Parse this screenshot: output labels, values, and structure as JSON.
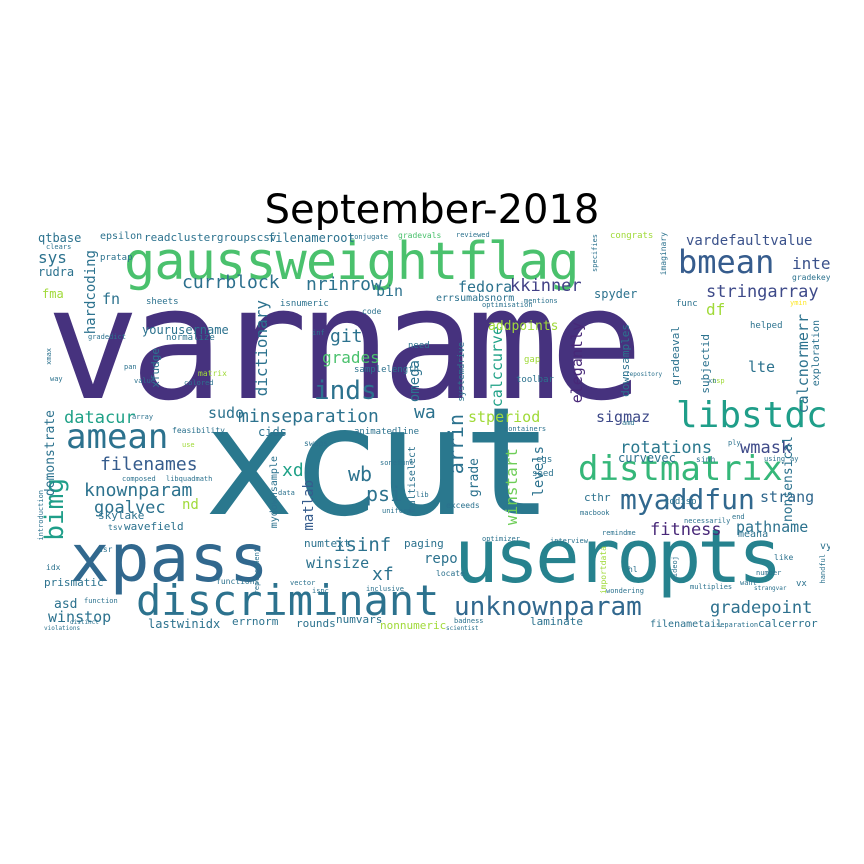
{
  "title": "September-2018",
  "colors": {
    "purple": "#46327e",
    "teal": "#277f8e",
    "blue": "#365c8d",
    "green": "#4ac16d",
    "seagreen": "#1fa187",
    "lime": "#a0da39",
    "yellow": "#fde725",
    "darkpurple": "#440154"
  },
  "words": {
    "varname": "varname",
    "xcut": "xcut",
    "useropts": "useropts",
    "xpass": "xpass",
    "gaussweightflag": "gaussweightflag",
    "discriminant": "discriminant",
    "distmatrix": "distmatrix",
    "libstdc": "libstdc",
    "amean": "amean",
    "bmean": "bmean",
    "unknownparam": "unknownparam",
    "myaddfun": "myaddfun",
    "inds": "inds",
    "bimg": "bimg",
    "knownparam": "knownparam",
    "filenames": "filenames",
    "datacur": "datacur",
    "minseparation": "minseparation",
    "currblock": "currblock",
    "nrinrow": "nrinrow",
    "kkinner": "kkinner",
    "stringarray": "stringarray",
    "vardefaultvalue": "vardefaultvalue",
    "intel": "intel",
    "rotations": "rotations",
    "wmask": "wmask",
    "sigmaz": "sigmaz",
    "fitness": "fitness",
    "gradepoint": "gradepoint",
    "pathname": "pathname",
    "strang": "strang",
    "isinf": "isinf",
    "winsize": "winsize",
    "goalvec": "goalvec",
    "winstop": "winstop",
    "skylake": "skylake",
    "wavefield": "wavefield",
    "lastwinidx": "lastwinidx",
    "prismatic": "prismatic",
    "psi": "psi",
    "xf": "xf",
    "xd": "xd",
    "wb": "wb",
    "repo": "repo",
    "git": "git",
    "grades": "grades",
    "fedora": "fedora",
    "arrin": "arrin",
    "stperiod": "stperiod",
    "winstart": "winstart",
    "elegantly": "elegantly",
    "calccurve": "calccurve",
    "dictionary": "dictionary",
    "omega": "omega",
    "sys": "sys",
    "hardcoding": "hardcoding",
    "fn": "fn",
    "sudo": "sudo",
    "wa": "wa",
    "df": "df",
    "lte": "lte",
    "calcnormerr": "calcnormerr",
    "nonsensical": "nonsensical",
    "curvevec": "curvevec",
    "levels": "levels",
    "grade": "grade",
    "matlab": "matlab",
    "asd": "asd",
    "nd": "nd",
    "bin": "bin",
    "addpoints": "addpoints",
    "spyder": "spyder",
    "errsumabsnorm": "errsumabsnorm",
    "filenameroot": "filenameroot",
    "readclustergroupscsv": "readclustergroupscsv",
    "epsilon": "epsilon",
    "qtbase": "qtbase",
    "rudra": "rudra",
    "fma": "fma",
    "demonstrate": "demonstrate",
    "yourusername": "yourusername",
    "mydownsample": "mydownsample",
    "cids": "cids",
    "errnorm": "errnorm",
    "rounds": "rounds",
    "numvars": "numvars",
    "nonnumeric": "nonnumeric",
    "laminate": "laminate",
    "filenametail": "filenametail",
    "calcerror": "calcerror",
    "numtext": "numtext",
    "paging": "paging",
    "cthr": "cthr",
    "meana": "meana",
    "vy": "vy",
    "vx": "vx",
    "gradeaval": "gradeaval",
    "downsamples": "downsamples",
    "subjectid": "subjectid",
    "exploration": "exploration",
    "gradekey": "gradekey",
    "todisp": "todisp",
    "sheets": "sheets",
    "pratap": "pratap",
    "congrats": "congrats",
    "conjugate": "conjugate",
    "gradevals": "gradevals",
    "reviewed": "reviewed",
    "specifies": "specifies",
    "imaginary": "imaginary",
    "clears": "clears",
    "isnumeric": "isnumeric",
    "optimisation": "optimisation",
    "mentions": "mentions",
    "code": "code",
    "func": "func",
    "ymin": "ymin",
    "helped": "helped",
    "normalize": "normalize",
    "samplelength": "samplelength",
    "need": "need",
    "toolbar": "toolbar",
    "systemdrive": "systemdrive",
    "gap": "gap",
    "xfudge": "xfudge",
    "matrix": "matrix",
    "colored": "colored",
    "feasibility": "feasibility",
    "animatedline": "animatedline",
    "containers": "containers",
    "composed": "composed",
    "libquadmath": "libquadmath",
    "swaps": "swaps",
    "sonefunc": "sonefunc",
    "uniform": "uniform",
    "multiselect": "multiselect",
    "exceeds": "exceeds",
    "macbook": "macbook",
    "cgs": "cgs",
    "seed": "seed",
    "interview": "interview",
    "remindme": "remindme",
    "optimizer": "optimizer",
    "necessarily": "necessarily",
    "sinh": "sinh",
    "using": "using",
    "like": "like",
    "number": "number",
    "handful": "handful",
    "replacement": "replacement",
    "introduction": "introduction",
    "tsv": "tsv",
    "usr": "usr",
    "idx": "idx",
    "function": "function",
    "functions": "functions",
    "violations": "violations",
    "vector": "vector",
    "scientist": "scientist",
    "badness": "badness",
    "locate": "locate",
    "wondering": "wondering",
    "multiplies": "multiplies",
    "strangvar": "strangvar",
    "hl": "hl",
    "importdata": "importdata",
    "videoj": "videoj",
    "separation": "separation",
    "inclusive": "inclusive",
    "ispc": "ispc",
    "data": "data",
    "cmmm": "cmmm",
    "gradedict": "gradedict",
    "distinct": "distinct",
    "pan": "pan",
    "way": "way",
    "array": "array",
    "value": "value",
    "xmax": "xmax",
    "slsh": "slsh",
    "amd": "amd",
    "repository": "repository",
    "tsp": "tsp",
    "xn": "xn",
    "want": "want",
    "end": "end",
    "lib": "lib",
    "use": "use",
    "inf": "inf",
    "ay": "ay",
    "ply": "ply"
  }
}
